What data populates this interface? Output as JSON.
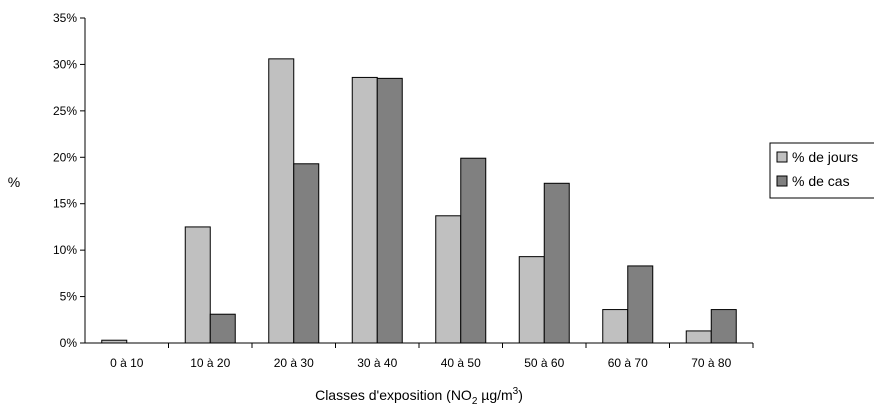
{
  "chart_data": {
    "type": "bar",
    "ylabel": "%",
    "xlabel_prefix": "Classes d'exposition (NO",
    "xlabel_sub": "2",
    "xlabel_mid": " µg/m",
    "xlabel_sup": "3",
    "xlabel_suffix": ")",
    "categories": [
      "0 à 10",
      "10 à 20",
      "20 à 30",
      "30 à 40",
      "40 à 50",
      "50 à 60",
      "60 à 70",
      "70 à 80"
    ],
    "series": [
      {
        "name": "% de jours",
        "color": "#c0c0c0",
        "values": [
          0.3,
          12.5,
          30.6,
          28.6,
          13.7,
          9.3,
          3.6,
          1.3
        ]
      },
      {
        "name": "% de cas",
        "color": "#808080",
        "values": [
          0,
          3.1,
          19.3,
          28.5,
          19.9,
          17.2,
          8.3,
          3.6
        ]
      }
    ],
    "yticks": [
      "0%",
      "5%",
      "10%",
      "15%",
      "20%",
      "25%",
      "30%",
      "35%"
    ],
    "ylim": [
      0,
      35
    ],
    "grid": false,
    "legend_position": "right"
  }
}
